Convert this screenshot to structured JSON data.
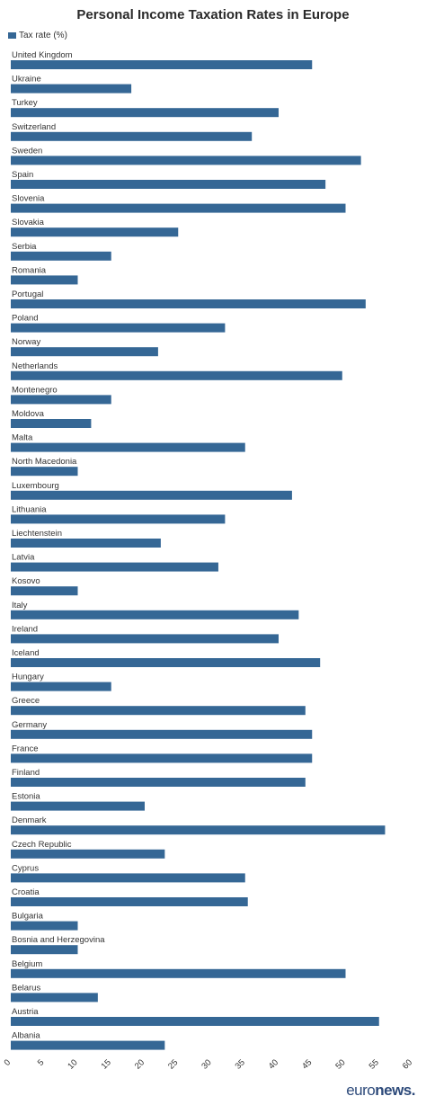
{
  "chart_data": {
    "type": "bar",
    "orientation": "horizontal",
    "title": "Personal Income Taxation Rates in Europe",
    "series": [
      {
        "name": "Tax rate (%)",
        "color": "#356795"
      }
    ],
    "categories": [
      "United Kingdom",
      "Ukraine",
      "Turkey",
      "Switzerland",
      "Sweden",
      "Spain",
      "Slovenia",
      "Slovakia",
      "Serbia",
      "Romania",
      "Portugal",
      "Poland",
      "Norway",
      "Netherlands",
      "Montenegro",
      "Moldova",
      "Malta",
      "North Macedonia",
      "Luxembourg",
      "Lithuania",
      "Liechtenstein",
      "Latvia",
      "Kosovo",
      "Italy",
      "Ireland",
      "Iceland",
      "Hungary",
      "Greece",
      "Germany",
      "France",
      "Finland",
      "Estonia",
      "Denmark",
      "Czech Republic",
      "Cyprus",
      "Croatia",
      "Bulgaria",
      "Bosnia and Herzegovina",
      "Belgium",
      "Belarus",
      "Austria",
      "Albania"
    ],
    "values": [
      45,
      18,
      40,
      36,
      52.3,
      47,
      50,
      25,
      15,
      10,
      53,
      32,
      22,
      49.5,
      15,
      12,
      35,
      10,
      42,
      32,
      22.4,
      31,
      10,
      43,
      40,
      46.2,
      15,
      44,
      45,
      45,
      44,
      20,
      55.9,
      23,
      35,
      35.4,
      10,
      10,
      50,
      13,
      55,
      23
    ],
    "xlim": [
      0,
      60
    ],
    "xticks": [
      0,
      5,
      10,
      15,
      20,
      25,
      30,
      35,
      40,
      45,
      50,
      55,
      60
    ],
    "grid": false,
    "legend_position": "top-left"
  },
  "brand": {
    "part1": "euro",
    "part2": "news."
  }
}
